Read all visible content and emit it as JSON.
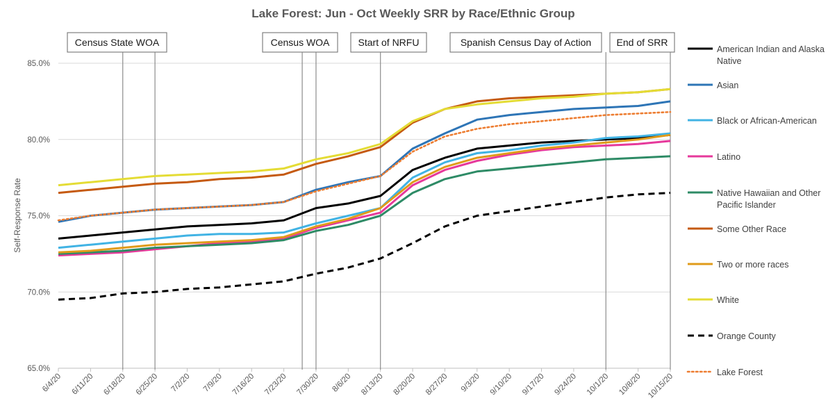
{
  "chart_data": {
    "type": "line",
    "title": "Lake Forest: Jun - Oct Weekly SRR by Race/Ethnic Group",
    "xlabel": "",
    "ylabel": "Self-Response Rate",
    "x_ticks": [
      "6/4/20",
      "6/11/20",
      "6/18/20",
      "6/25/20",
      "7/2/20",
      "7/9/20",
      "7/16/20",
      "7/23/20",
      "7/30/20",
      "8/6/20",
      "8/13/20",
      "8/20/20",
      "8/27/20",
      "9/3/20",
      "9/10/20",
      "9/17/20",
      "9/24/20",
      "10/1/20",
      "10/8/20",
      "10/15/20"
    ],
    "ylim": [
      65.0,
      85.0
    ],
    "y_ticks": [
      65.0,
      70.0,
      75.0,
      80.0,
      85.0
    ],
    "y_tick_labels": [
      "65.0%",
      "70.0%",
      "75.0%",
      "80.0%",
      "85.0%"
    ],
    "legend_position": "right",
    "annotations": [
      {
        "label": "Census State WOA",
        "lines_at": [
          "6/18/20",
          "6/25/20"
        ]
      },
      {
        "label": "Census WOA",
        "lines_at": [
          "7/27/20",
          "7/30/20"
        ]
      },
      {
        "label": "Start of NRFU",
        "lines_at": [
          "8/13/20"
        ]
      },
      {
        "label": "Spanish Census Day of Action",
        "lines_at": [
          "10/1/20"
        ]
      },
      {
        "label": "End of SRR",
        "lines_at": [
          "10/15/20"
        ]
      }
    ],
    "series": [
      {
        "name": "American Indian and Alaska Native",
        "color": "#000000",
        "style": "solid",
        "values": [
          73.5,
          73.7,
          73.9,
          74.1,
          74.3,
          74.4,
          74.5,
          74.7,
          75.5,
          75.8,
          76.3,
          78.0,
          78.8,
          79.4,
          79.6,
          79.8,
          79.9,
          80.0,
          80.1,
          80.3
        ]
      },
      {
        "name": "Asian",
        "color": "#2e75b6",
        "style": "solid",
        "values": [
          74.6,
          75.0,
          75.2,
          75.4,
          75.5,
          75.6,
          75.7,
          75.9,
          76.7,
          77.2,
          77.6,
          79.4,
          80.4,
          81.3,
          81.6,
          81.8,
          82.0,
          82.1,
          82.2,
          82.5
        ]
      },
      {
        "name": "Black or African-American",
        "color": "#41b3e4",
        "style": "solid",
        "values": [
          72.9,
          73.1,
          73.3,
          73.5,
          73.7,
          73.8,
          73.8,
          73.9,
          74.5,
          75.0,
          75.5,
          77.5,
          78.5,
          79.1,
          79.3,
          79.6,
          79.8,
          80.1,
          80.2,
          80.4
        ]
      },
      {
        "name": "Latino",
        "color": "#e6399b",
        "style": "solid",
        "values": [
          72.4,
          72.5,
          72.6,
          72.8,
          73.0,
          73.2,
          73.3,
          73.5,
          74.2,
          74.7,
          75.2,
          77.0,
          78.0,
          78.6,
          79.0,
          79.3,
          79.5,
          79.6,
          79.7,
          79.9
        ]
      },
      {
        "name": "Native Hawaiian and Other Pacific Islander",
        "color": "#2e8b66",
        "style": "solid",
        "values": [
          72.5,
          72.6,
          72.7,
          72.9,
          73.0,
          73.1,
          73.2,
          73.4,
          74.0,
          74.4,
          75.0,
          76.5,
          77.4,
          77.9,
          78.1,
          78.3,
          78.5,
          78.7,
          78.8,
          78.9
        ]
      },
      {
        "name": "Some Other Race",
        "color": "#c55a11",
        "style": "solid",
        "values": [
          76.5,
          76.7,
          76.9,
          77.1,
          77.2,
          77.4,
          77.5,
          77.7,
          78.4,
          78.9,
          79.5,
          81.1,
          82.0,
          82.5,
          82.7,
          82.8,
          82.9,
          83.0,
          83.1,
          83.3
        ]
      },
      {
        "name": "Two or more races",
        "color": "#e09b1a",
        "style": "solid",
        "values": [
          72.6,
          72.7,
          72.9,
          73.1,
          73.2,
          73.3,
          73.4,
          73.6,
          74.3,
          74.8,
          75.5,
          77.2,
          78.2,
          78.8,
          79.1,
          79.4,
          79.6,
          79.8,
          80.0,
          80.3
        ]
      },
      {
        "name": "White",
        "color": "#e4dc35",
        "style": "solid",
        "values": [
          77.0,
          77.2,
          77.4,
          77.6,
          77.7,
          77.8,
          77.9,
          78.1,
          78.7,
          79.1,
          79.7,
          81.2,
          82.0,
          82.3,
          82.5,
          82.7,
          82.8,
          83.0,
          83.1,
          83.3
        ]
      },
      {
        "name": "Orange County",
        "color": "#000000",
        "style": "dashed",
        "values": [
          69.5,
          69.6,
          69.9,
          70.0,
          70.2,
          70.3,
          70.5,
          70.7,
          71.2,
          71.6,
          72.2,
          73.2,
          74.3,
          75.0,
          75.3,
          75.6,
          75.9,
          76.2,
          76.4,
          76.5
        ]
      },
      {
        "name": "Lake Forest",
        "color": "#ed7d31",
        "style": "dotted",
        "values": [
          74.7,
          75.0,
          75.2,
          75.4,
          75.5,
          75.6,
          75.7,
          75.9,
          76.6,
          77.1,
          77.6,
          79.2,
          80.2,
          80.7,
          81.0,
          81.2,
          81.4,
          81.6,
          81.7,
          81.8
        ]
      }
    ]
  }
}
